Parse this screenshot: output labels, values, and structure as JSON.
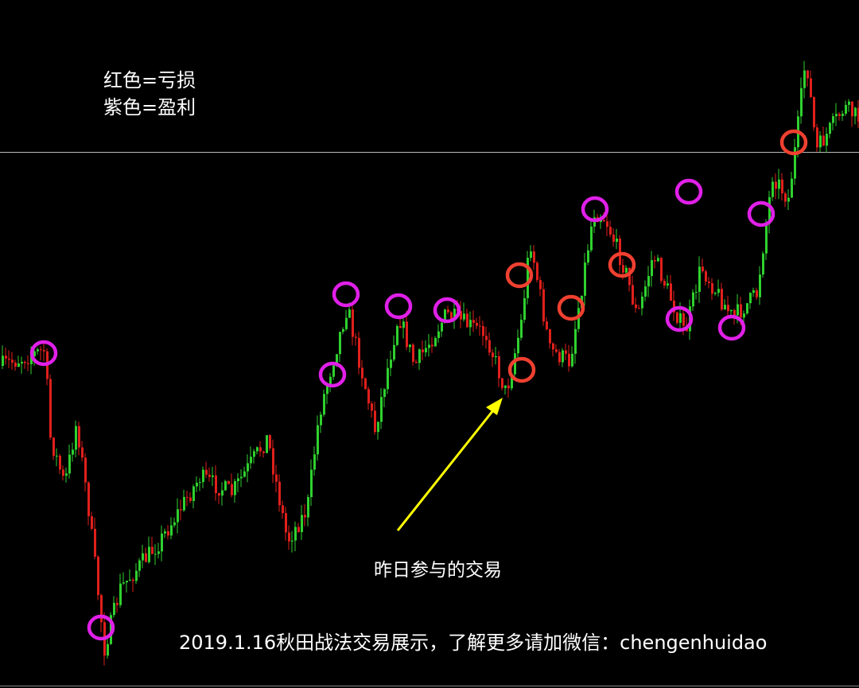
{
  "legend": {
    "lines": [
      "红色=亏损",
      "紫色=盈利"
    ]
  },
  "annotation": "昨日参与的交易",
  "caption": "2019.1.16秋田战法交易展示，了解更多请加微信：chengenhuidao"
}
